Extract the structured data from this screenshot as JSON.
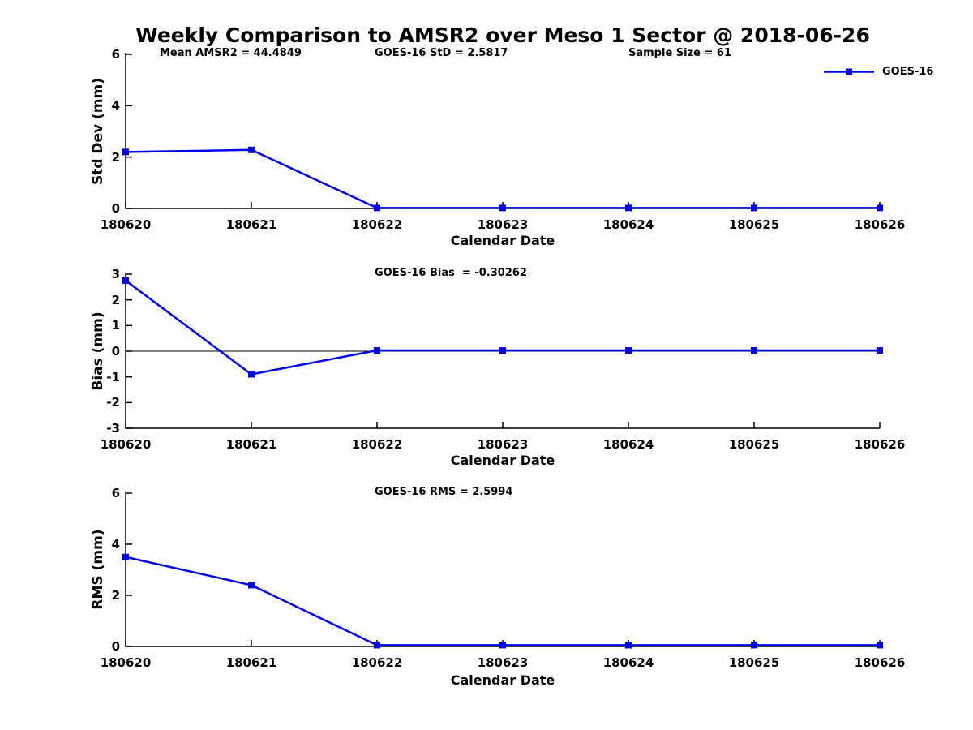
{
  "title": "Weekly Comparison to AMSR2 over Meso 1 Sector @ 2018-06-26",
  "stats": {
    "mean_amsr2": "Mean AMSR2 = 44.4849",
    "goes16_std": "GOES-16 StD = 2.5817",
    "sample_size": "Sample Size = 61"
  },
  "legend": {
    "label": "GOES-16",
    "color": "#0000EE"
  },
  "chart_data": [
    {
      "type": "line",
      "categories": [
        "180620",
        "180621",
        "180622",
        "180623",
        "180624",
        "180625",
        "180626"
      ],
      "series": [
        {
          "name": "GOES-16",
          "color": "#0000EE",
          "values": [
            2.2,
            2.28,
            0.02,
            0.02,
            0.02,
            0.02,
            0.02
          ]
        }
      ],
      "xlabel": "Calendar Date",
      "ylabel": "Std Dev (mm)",
      "ylim": [
        0,
        6
      ],
      "yticks": [
        0,
        2,
        4,
        6
      ],
      "zero_line": false,
      "grid": false,
      "marker": "square",
      "legend_position": "top-right-outside"
    },
    {
      "type": "line",
      "annotation": "GOES-16 Bias  = -0.30262",
      "categories": [
        "180620",
        "180621",
        "180622",
        "180623",
        "180624",
        "180625",
        "180626"
      ],
      "series": [
        {
          "name": "GOES-16",
          "color": "#0000EE",
          "values": [
            2.75,
            -0.9,
            0.03,
            0.03,
            0.03,
            0.03,
            0.03
          ]
        }
      ],
      "xlabel": "Calendar Date",
      "ylabel": "Bias (mm)",
      "ylim": [
        -3,
        3
      ],
      "yticks": [
        -3,
        -2,
        -1,
        0,
        1,
        2,
        3
      ],
      "zero_line": true,
      "grid": false,
      "marker": "square"
    },
    {
      "type": "line",
      "annotation": "GOES-16 RMS = 2.5994",
      "categories": [
        "180620",
        "180621",
        "180622",
        "180623",
        "180624",
        "180625",
        "180626"
      ],
      "series": [
        {
          "name": "GOES-16",
          "color": "#0000EE",
          "values": [
            3.5,
            2.4,
            0.05,
            0.05,
            0.05,
            0.05,
            0.05
          ]
        }
      ],
      "xlabel": "Calendar Date",
      "ylabel": "RMS (mm)",
      "ylim": [
        0,
        6
      ],
      "yticks": [
        0,
        2,
        4,
        6
      ],
      "zero_line": false,
      "grid": false,
      "marker": "square"
    }
  ]
}
